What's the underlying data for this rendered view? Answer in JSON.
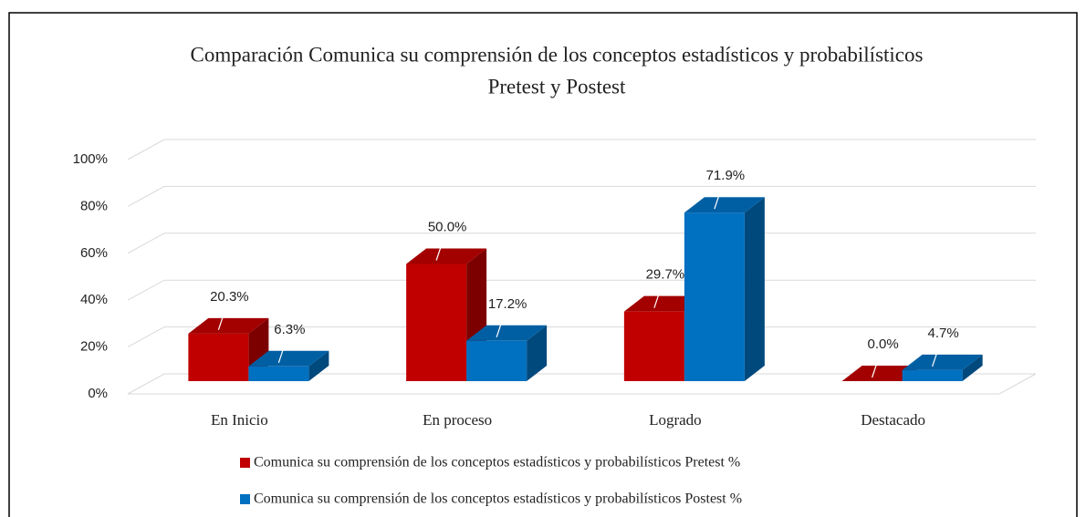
{
  "chart_data": {
    "type": "bar3d",
    "title": [
      "Comparación Comunica su comprensión de los conceptos estadísticos y probabilísticos",
      "Pretest y Postest"
    ],
    "categories": [
      "En Inicio",
      "En proceso",
      "Logrado",
      "Destacado"
    ],
    "series": [
      {
        "name": "Comunica su comprensión de los conceptos estadísticos y probabilísticos Pretest %",
        "color": "#c00000",
        "values": [
          20.3,
          50.0,
          29.7,
          0.0
        ],
        "value_labels": [
          "20.3%",
          "50.0%",
          "29.7%",
          "0.0%"
        ]
      },
      {
        "name": "Comunica su comprensión de los conceptos estadísticos y probabilísticos Postest %",
        "color": "#0070c0",
        "values": [
          6.3,
          17.2,
          71.9,
          4.7
        ],
        "value_labels": [
          "6.3%",
          "17.2%",
          "71.9%",
          "4.7%"
        ]
      }
    ],
    "ylim": [
      0,
      100
    ],
    "yticks": [
      {
        "value": 0,
        "label": "0%"
      },
      {
        "value": 20,
        "label": "20%"
      },
      {
        "value": 40,
        "label": "40%"
      },
      {
        "value": 60,
        "label": "60%"
      },
      {
        "value": 80,
        "label": "80%"
      },
      {
        "value": 100,
        "label": "100%"
      }
    ],
    "grid": true
  }
}
